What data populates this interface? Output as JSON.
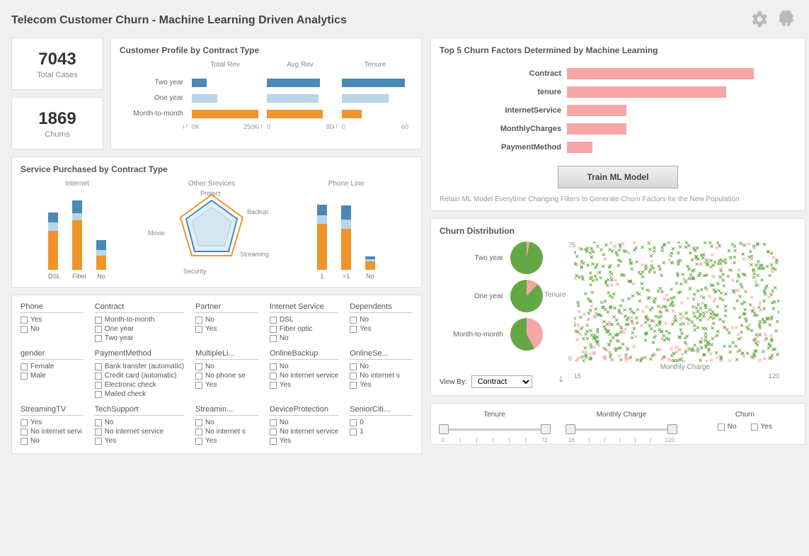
{
  "title": "Telecom Customer Churn - Machine Learning Driven Analytics",
  "colors": {
    "orange": "#f0932b",
    "blue": "#4a88b6",
    "lightblue": "#b7d6e8",
    "pink": "#f7a6a6",
    "darkpink": "#f08686",
    "green": "#64a843",
    "scatter_green": "#64a843",
    "scatter_pink": "#f7a6a6",
    "grid": "#e5e5e5",
    "text_muted": "#888888"
  },
  "counters": {
    "total_cases": {
      "value": "7043",
      "label": "Total Cases"
    },
    "churns": {
      "value": "1869",
      "label": "Churns"
    }
  },
  "profile": {
    "title": "Customer Profile by Contract Type",
    "row_labels": [
      "Two year",
      "One year",
      "Month-to-month"
    ],
    "columns": [
      {
        "header": "Total Rev",
        "ticks": [
          "0K",
          "250K"
        ],
        "bars": [
          {
            "width_pct": 22,
            "color": "#4a88b6"
          },
          {
            "width_pct": 38,
            "color": "#b7d6e8"
          },
          {
            "width_pct": 100,
            "color": "#f0932b"
          }
        ],
        "sort": "↓↑"
      },
      {
        "header": "Avg Rev",
        "ticks": [
          "0",
          "80"
        ],
        "bars": [
          {
            "width_pct": 80,
            "color": "#4a88b6"
          },
          {
            "width_pct": 78,
            "color": "#b7d6e8"
          },
          {
            "width_pct": 84,
            "color": "#f0932b"
          }
        ],
        "sort": "↓↑"
      },
      {
        "header": "Tenure",
        "ticks": [
          "0",
          "60"
        ],
        "bars": [
          {
            "width_pct": 95,
            "color": "#4a88b6"
          },
          {
            "width_pct": 70,
            "color": "#b7d6e8"
          },
          {
            "width_pct": 30,
            "color": "#f0932b"
          }
        ],
        "sort": "↓↑"
      }
    ]
  },
  "services": {
    "title": "Service Purchased by Contract Type",
    "internet": {
      "header": "Internet",
      "categories": [
        "DSL",
        "Fiber",
        "No"
      ],
      "stacks": [
        [
          {
            "h": 55,
            "c": "#f0932b"
          },
          {
            "h": 12,
            "c": "#b7d6e8"
          },
          {
            "h": 14,
            "c": "#4a88b6"
          }
        ],
        [
          {
            "h": 70,
            "c": "#f0932b"
          },
          {
            "h": 10,
            "c": "#b7d6e8"
          },
          {
            "h": 18,
            "c": "#4a88b6"
          }
        ],
        [
          {
            "h": 20,
            "c": "#f0932b"
          },
          {
            "h": 8,
            "c": "#b7d6e8"
          },
          {
            "h": 14,
            "c": "#4a88b6"
          }
        ]
      ]
    },
    "other": {
      "header": "Other Srevices",
      "axes": [
        "Protect",
        "Backup",
        "Streaming",
        "Security",
        "Movie"
      ],
      "poly_outer": "50,4 94,36 78,90 22,90 6,36",
      "poly_mid": "50,12 86,38 74,84 26,84 14,38",
      "poly_inner": "50,22 78,42 68,76 32,76 22,42"
    },
    "phone": {
      "header": "Phone Line",
      "categories": [
        "1",
        ">1",
        "No"
      ],
      "stacks": [
        [
          {
            "h": 65,
            "c": "#f0932b"
          },
          {
            "h": 12,
            "c": "#b7d6e8"
          },
          {
            "h": 15,
            "c": "#4a88b6"
          }
        ],
        [
          {
            "h": 58,
            "c": "#f0932b"
          },
          {
            "h": 13,
            "c": "#b7d6e8"
          },
          {
            "h": 20,
            "c": "#4a88b6"
          }
        ],
        [
          {
            "h": 12,
            "c": "#f0932b"
          },
          {
            "h": 3,
            "c": "#b7d6e8"
          },
          {
            "h": 4,
            "c": "#4a88b6"
          }
        ]
      ]
    }
  },
  "filters": [
    {
      "title": "Phone",
      "options": [
        "Yes",
        "No"
      ]
    },
    {
      "title": "Contract",
      "options": [
        "Month-to-month",
        "One year",
        "Two year"
      ]
    },
    {
      "title": "Partner",
      "options": [
        "No",
        "Yes"
      ]
    },
    {
      "title": "Internet Service",
      "options": [
        "DSL",
        "Fiber optic",
        "No"
      ]
    },
    {
      "title": "Dependents",
      "options": [
        "No",
        "Yes"
      ]
    },
    {
      "title": "gender",
      "options": [
        "Female",
        "Male"
      ]
    },
    {
      "title": "PaymentMethod",
      "options": [
        "Bank transfer (automatic)",
        "Credit card (automatic)",
        "Electronic check",
        "Mailed check"
      ]
    },
    {
      "title": "MultipleLi...",
      "options": [
        "No",
        "No phone se",
        "Yes"
      ]
    },
    {
      "title": "OnlineBackup",
      "options": [
        "No",
        "No internet service",
        "Yes"
      ]
    },
    {
      "title": "OnlineSe...",
      "options": [
        "No",
        "No internet s",
        "Yes"
      ]
    },
    {
      "title": "StreamingTV",
      "options": [
        "Yes",
        "No internet servi",
        "No"
      ]
    },
    {
      "title": "TechSupport",
      "options": [
        "No",
        "No internet service",
        "Yes"
      ]
    },
    {
      "title": "Streamin...",
      "options": [
        "No",
        "No internet s",
        "Yes"
      ]
    },
    {
      "title": "DeviceProtection",
      "options": [
        "No",
        "No internet service",
        "Yes"
      ]
    },
    {
      "title": "SeniorCiti...",
      "options": [
        "0",
        "1"
      ]
    }
  ],
  "factors": {
    "title": "Top 5 Churn Factors Determined by Machine Learning",
    "rows": [
      {
        "label": "Contract",
        "width_pct": 88
      },
      {
        "label": "tenure",
        "width_pct": 75
      },
      {
        "label": "InternetService",
        "width_pct": 28
      },
      {
        "label": "MonthlyCharges",
        "width_pct": 28
      },
      {
        "label": "PaymentMethod",
        "width_pct": 12
      }
    ],
    "bar_color": "#f7a6a6",
    "button": "Train ML Model",
    "hint": "Retain ML Model Everytime Changing Filters to Generate Churn Factors for the New Population"
  },
  "churn_dist": {
    "title": "Churn Distribution",
    "pies": [
      {
        "label": "Two year",
        "churn_pct": 3
      },
      {
        "label": "One year",
        "churn_pct": 12
      },
      {
        "label": "Month-to-month",
        "churn_pct": 42
      }
    ],
    "pie_colors": {
      "stay": "#64a843",
      "churn": "#f7a6a6"
    },
    "viewby_label": "View By:",
    "viewby_value": "Contract",
    "scatter": {
      "ylabel": "Tenure",
      "xlabel": "Monthly Charge",
      "ylim": [
        0,
        75
      ],
      "xlim": [
        15,
        120
      ],
      "n_green": 600,
      "n_pink": 200
    }
  },
  "sliders": {
    "tenure": {
      "title": "Tenure",
      "min": 0,
      "max": 72,
      "lo": 0,
      "hi": 72
    },
    "charge": {
      "title": "Monthly Charge",
      "min": 18,
      "max": 120,
      "lo": 18,
      "hi": 120
    },
    "churn": {
      "title": "Churn",
      "options": [
        "No",
        "Yes"
      ]
    }
  }
}
